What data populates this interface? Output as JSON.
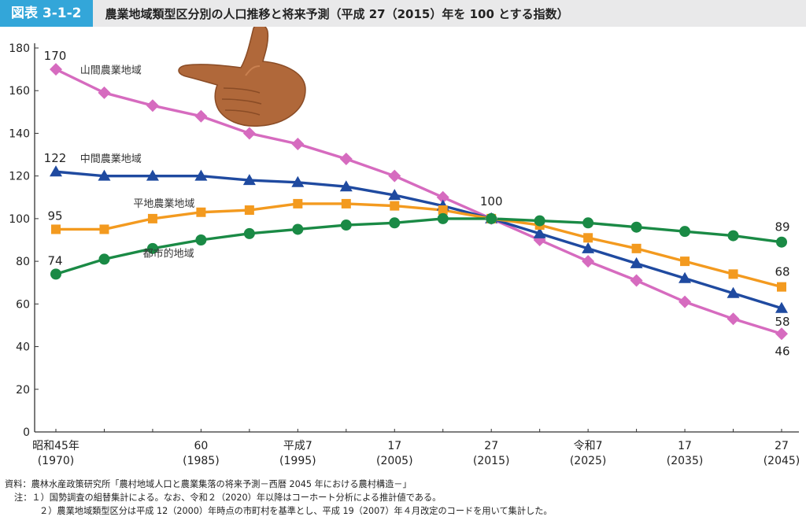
{
  "header": {
    "figure_number": "図表 3-1-2",
    "title": "農業地域類型区分別の人口推移と将来予測（平成 27（2015）年を 100 とする指数）"
  },
  "chart_data": {
    "type": "line",
    "title": "農業地域類型区分別の人口推移と将来予測（平成 27（2015）年を 100 とする指数）",
    "ylim": [
      0,
      180
    ],
    "yticks": [
      0,
      20,
      40,
      60,
      80,
      100,
      120,
      140,
      160,
      180
    ],
    "x": [
      1970,
      1975,
      1980,
      1985,
      1990,
      1995,
      2000,
      2005,
      2010,
      2015,
      2020,
      2025,
      2030,
      2035,
      2040,
      2045
    ],
    "xlim": [
      1970,
      2045
    ],
    "xticks": [
      {
        "x": 1970,
        "line1": "昭和45年",
        "line2": "(1970)"
      },
      {
        "x": 1985,
        "line1": "60",
        "line2": "(1985)"
      },
      {
        "x": 1995,
        "line1": "平成7",
        "line2": "(1995)"
      },
      {
        "x": 2005,
        "line1": "17",
        "line2": "(2005)"
      },
      {
        "x": 2015,
        "line1": "27",
        "line2": "(2015)"
      },
      {
        "x": 2025,
        "line1": "令和7",
        "line2": "(2025)"
      },
      {
        "x": 2035,
        "line1": "17",
        "line2": "(2035)"
      },
      {
        "x": 2045,
        "line1": "27",
        "line2": "(2045)"
      }
    ],
    "series": [
      {
        "name": "山間農業地域",
        "color": "#d66bbf",
        "marker": "diamond",
        "values": [
          170,
          159,
          153,
          148,
          140,
          135,
          128,
          120,
          110,
          100,
          90,
          80,
          71,
          61,
          53,
          46
        ],
        "start_label": "170",
        "end_label": "46",
        "name_label_at": {
          "x": 1972.5,
          "y": 168
        }
      },
      {
        "name": "中間農業地域",
        "color": "#1f4aa0",
        "marker": "triangle",
        "values": [
          122,
          120,
          120,
          120,
          118,
          117,
          115,
          111,
          106,
          100,
          93,
          86,
          79,
          72,
          65,
          58
        ],
        "start_label": "122",
        "end_label": "58",
        "name_label_at": {
          "x": 1972.5,
          "y": 126.5
        }
      },
      {
        "name": "平地農業地域",
        "color": "#f39a1f",
        "marker": "square",
        "values": [
          95,
          95,
          100,
          103,
          104,
          107,
          107,
          106,
          104,
          100,
          97,
          91,
          86,
          80,
          74,
          68
        ],
        "start_label": "95",
        "end_label": "68",
        "name_label_at": {
          "x": 1978,
          "y": 105.5
        }
      },
      {
        "name": "都市的地域",
        "color": "#1a8a45",
        "marker": "circle",
        "values": [
          74,
          81,
          86,
          90,
          93,
          95,
          97,
          98,
          100,
          100,
          99,
          98,
          96,
          94,
          92,
          89
        ],
        "start_label": "74",
        "end_label": "89",
        "name_label_at": {
          "x": 1979,
          "y": 82
        }
      }
    ],
    "annotations": [
      {
        "x": 2015,
        "y": 100,
        "text": "100"
      }
    ]
  },
  "notes": {
    "source": "資料：農林水産政策研究所「農村地域人口と農業集落の将来予測－西暦 2045 年における農村構造－」",
    "note1": "注：１）国勢調査の組替集計による。なお、令和２（2020）年以降はコーホート分析による推計値である。",
    "note2": "２）農業地域類型区分は平成 12（2000）年時点の市町村を基準とし、平成 19（2007）年４月改定のコードを用いて集計した。"
  }
}
